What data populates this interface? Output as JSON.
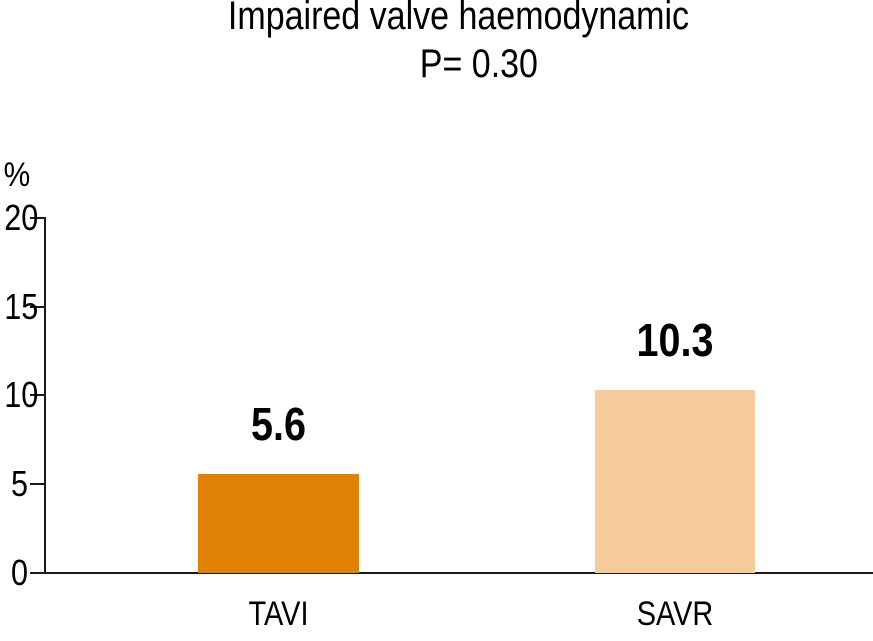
{
  "title": {
    "line1": "Impaired valve haemodynamic",
    "line2": "P= 0.30"
  },
  "y_axis": {
    "unit": "%",
    "ticks": [
      "20",
      "15",
      "10",
      "5",
      "0"
    ]
  },
  "chart_data": {
    "type": "bar",
    "title": "Impaired valve haemodynamic",
    "subtitle": "P= 0.30",
    "p_value": 0.3,
    "categories": [
      "TAVI",
      "SAVR"
    ],
    "values": [
      5.6,
      10.3
    ],
    "value_labels": [
      "5.6",
      "10.3"
    ],
    "bar_colors": [
      "#E08206",
      "#F5CB9B"
    ],
    "xlabel": "",
    "ylabel": "%",
    "ylim": [
      0,
      20
    ],
    "yticks": [
      20,
      15,
      10,
      5,
      0
    ],
    "grid": false,
    "legend": false,
    "axis_color": "#1a1a1a",
    "background": "#ffffff"
  }
}
